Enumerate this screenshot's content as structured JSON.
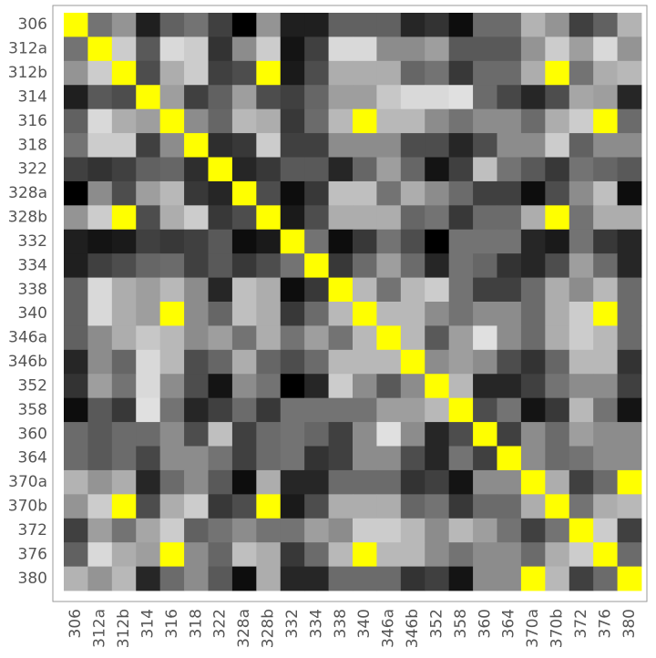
{
  "chart_data": {
    "type": "heatmap",
    "categories": [
      "306",
      "312a",
      "312b",
      "314",
      "316",
      "318",
      "322",
      "328a",
      "328b",
      "332",
      "334",
      "338",
      "340",
      "346a",
      "346b",
      "352",
      "358",
      "360",
      "364",
      "370a",
      "370b",
      "372",
      "376",
      "380"
    ],
    "zlim": [
      0,
      1
    ],
    "max_color": "#ffff00",
    "values": [
      [
        1,
        0.45,
        0.58,
        0.12,
        0.38,
        0.45,
        0.25,
        0,
        0.58,
        0.12,
        0.12,
        0.38,
        0.38,
        0.38,
        0.15,
        0.2,
        0.05,
        0.42,
        0.42,
        0.7,
        0.58,
        0.25,
        0.38,
        0.7
      ],
      [
        0.45,
        1,
        0.8,
        0.35,
        0.85,
        0.8,
        0.2,
        0.55,
        0.8,
        0.08,
        0.25,
        0.85,
        0.85,
        0.55,
        0.55,
        0.62,
        0.35,
        0.35,
        0.35,
        0.58,
        0.8,
        0.62,
        0.85,
        0.58
      ],
      [
        0.58,
        0.8,
        1,
        0.3,
        0.68,
        0.8,
        0.25,
        0.3,
        1,
        0.1,
        0.3,
        0.68,
        0.68,
        0.68,
        0.4,
        0.45,
        0.22,
        0.42,
        0.42,
        0.68,
        1,
        0.45,
        0.68,
        0.72
      ],
      [
        0.12,
        0.35,
        0.3,
        1,
        0.62,
        0.25,
        0.38,
        0.62,
        0.3,
        0.25,
        0.4,
        0.62,
        0.62,
        0.78,
        0.85,
        0.85,
        0.88,
        0.42,
        0.28,
        0.15,
        0.3,
        0.65,
        0.62,
        0.15
      ],
      [
        0.38,
        0.85,
        0.68,
        0.62,
        1,
        0.55,
        0.4,
        0.72,
        0.68,
        0.22,
        0.42,
        0.72,
        1,
        0.72,
        0.72,
        0.55,
        0.45,
        0.55,
        0.55,
        0.42,
        0.68,
        0.8,
        1,
        0.42
      ],
      [
        0.45,
        0.8,
        0.8,
        0.25,
        0.55,
        1,
        0.18,
        0.22,
        0.8,
        0.25,
        0.25,
        0.55,
        0.55,
        0.55,
        0.3,
        0.3,
        0.15,
        0.3,
        0.55,
        0.55,
        0.8,
        0.38,
        0.55,
        0.55
      ],
      [
        0.25,
        0.2,
        0.25,
        0.38,
        0.4,
        0.18,
        1,
        0.15,
        0.22,
        0.35,
        0.35,
        0.15,
        0.4,
        0.62,
        0.4,
        0.08,
        0.25,
        0.75,
        0.45,
        0.35,
        0.22,
        0.45,
        0.4,
        0.35
      ],
      [
        0,
        0.55,
        0.3,
        0.62,
        0.72,
        0.22,
        0.15,
        1,
        0.3,
        0.05,
        0.22,
        0.75,
        0.75,
        0.45,
        0.68,
        0.55,
        0.42,
        0.25,
        0.25,
        0.05,
        0.3,
        0.55,
        0.75,
        0.05
      ],
      [
        0.58,
        0.8,
        1,
        0.3,
        0.68,
        0.8,
        0.22,
        0.3,
        1,
        0.1,
        0.3,
        0.68,
        0.68,
        0.68,
        0.4,
        0.45,
        0.22,
        0.42,
        0.42,
        0.68,
        1,
        0.45,
        0.68,
        0.68
      ],
      [
        0.12,
        0.08,
        0.1,
        0.25,
        0.22,
        0.25,
        0.35,
        0.05,
        0.1,
        1,
        0.45,
        0.05,
        0.22,
        0.45,
        0.3,
        0,
        0.45,
        0.45,
        0.45,
        0.15,
        0.1,
        0.45,
        0.22,
        0.15
      ],
      [
        0.12,
        0.25,
        0.3,
        0.4,
        0.42,
        0.25,
        0.35,
        0.22,
        0.3,
        0.45,
        1,
        0.22,
        0.42,
        0.62,
        0.42,
        0.15,
        0.45,
        0.4,
        0.2,
        0.15,
        0.3,
        0.62,
        0.42,
        0.15
      ],
      [
        0.38,
        0.85,
        0.68,
        0.62,
        0.72,
        0.55,
        0.15,
        0.75,
        0.68,
        0.05,
        0.22,
        1,
        0.72,
        0.45,
        0.72,
        0.8,
        0.45,
        0.25,
        0.25,
        0.42,
        0.68,
        0.55,
        0.72,
        0.42
      ],
      [
        0.38,
        0.85,
        0.68,
        0.62,
        1,
        0.55,
        0.4,
        0.75,
        0.68,
        0.22,
        0.42,
        0.72,
        1,
        0.72,
        0.72,
        0.55,
        0.45,
        0.55,
        0.55,
        0.42,
        0.68,
        0.8,
        1,
        0.42
      ],
      [
        0.38,
        0.55,
        0.68,
        0.78,
        0.72,
        0.55,
        0.62,
        0.45,
        0.68,
        0.45,
        0.62,
        0.45,
        0.72,
        1,
        0.72,
        0.35,
        0.62,
        0.88,
        0.55,
        0.42,
        0.68,
        0.8,
        0.72,
        0.42
      ],
      [
        0.15,
        0.55,
        0.4,
        0.85,
        0.72,
        0.3,
        0.4,
        0.68,
        0.4,
        0.3,
        0.42,
        0.72,
        0.72,
        0.72,
        1,
        0.55,
        0.62,
        0.55,
        0.3,
        0.2,
        0.4,
        0.72,
        0.72,
        0.2
      ],
      [
        0.2,
        0.62,
        0.45,
        0.85,
        0.55,
        0.3,
        0.08,
        0.55,
        0.45,
        0,
        0.15,
        0.8,
        0.55,
        0.35,
        0.55,
        1,
        0.72,
        0.15,
        0.15,
        0.25,
        0.45,
        0.55,
        0.55,
        0.25
      ],
      [
        0.05,
        0.35,
        0.22,
        0.88,
        0.45,
        0.15,
        0.25,
        0.42,
        0.22,
        0.45,
        0.45,
        0.45,
        0.45,
        0.62,
        0.62,
        0.72,
        1,
        0.3,
        0.45,
        0.08,
        0.22,
        0.72,
        0.45,
        0.08
      ],
      [
        0.42,
        0.35,
        0.42,
        0.42,
        0.55,
        0.3,
        0.75,
        0.25,
        0.42,
        0.45,
        0.4,
        0.25,
        0.55,
        0.88,
        0.55,
        0.15,
        0.3,
        1,
        0.25,
        0.55,
        0.42,
        0.62,
        0.55,
        0.55
      ],
      [
        0.42,
        0.35,
        0.42,
        0.28,
        0.55,
        0.55,
        0.45,
        0.25,
        0.42,
        0.45,
        0.2,
        0.25,
        0.55,
        0.55,
        0.3,
        0.15,
        0.45,
        0.25,
        1,
        0.55,
        0.42,
        0.45,
        0.55,
        0.55
      ],
      [
        0.7,
        0.58,
        0.68,
        0.15,
        0.42,
        0.55,
        0.35,
        0.05,
        0.68,
        0.15,
        0.15,
        0.42,
        0.42,
        0.42,
        0.2,
        0.25,
        0.08,
        0.55,
        0.55,
        1,
        0.68,
        0.25,
        0.42,
        1
      ],
      [
        0.58,
        0.8,
        1,
        0.3,
        0.68,
        0.8,
        0.22,
        0.3,
        1,
        0.1,
        0.3,
        0.68,
        0.68,
        0.68,
        0.4,
        0.45,
        0.22,
        0.42,
        0.42,
        0.68,
        1,
        0.45,
        0.68,
        0.72
      ],
      [
        0.25,
        0.62,
        0.45,
        0.65,
        0.8,
        0.38,
        0.45,
        0.55,
        0.45,
        0.45,
        0.62,
        0.55,
        0.8,
        0.8,
        0.72,
        0.55,
        0.72,
        0.62,
        0.45,
        0.25,
        0.45,
        1,
        0.8,
        0.25
      ],
      [
        0.38,
        0.85,
        0.68,
        0.62,
        1,
        0.55,
        0.4,
        0.75,
        0.68,
        0.22,
        0.42,
        0.72,
        1,
        0.72,
        0.72,
        0.55,
        0.45,
        0.55,
        0.55,
        0.42,
        0.68,
        0.8,
        1,
        0.42
      ],
      [
        0.7,
        0.58,
        0.72,
        0.15,
        0.42,
        0.55,
        0.35,
        0.05,
        0.68,
        0.15,
        0.15,
        0.42,
        0.42,
        0.42,
        0.2,
        0.25,
        0.08,
        0.55,
        0.55,
        1,
        0.72,
        0.25,
        0.42,
        1
      ]
    ]
  }
}
